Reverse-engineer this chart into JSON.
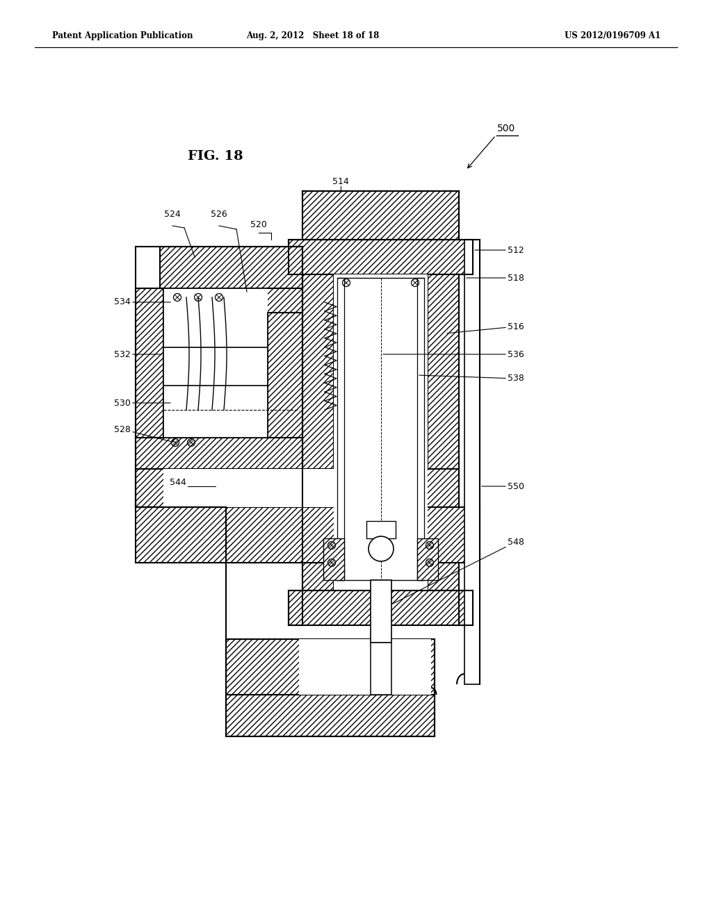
{
  "patent_header_left": "Patent Application Publication",
  "patent_header_center": "Aug. 2, 2012   Sheet 18 of 18",
  "patent_header_right": "US 2012/0196709 A1",
  "fig_label": "FIG. 18",
  "background_color": "#ffffff"
}
